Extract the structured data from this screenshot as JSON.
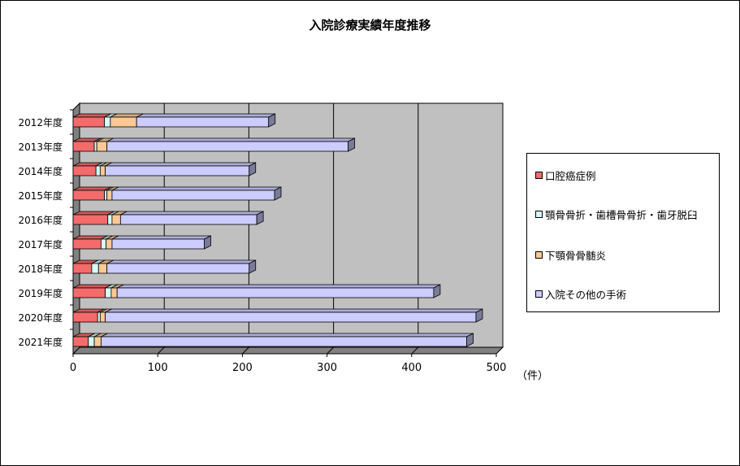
{
  "chart_data": {
    "type": "bar",
    "orientation": "horizontal",
    "stacked": true,
    "title": "入院診療実績年度推移",
    "categories": [
      "2012年度",
      "2013年度",
      "2014年度",
      "2015年度",
      "2016年度",
      "2017年度",
      "2018年度",
      "2019年度",
      "2020年度",
      "2021年度"
    ],
    "series": [
      {
        "name": "口腔癌症例",
        "color": "#f36b6b",
        "values": [
          37,
          25,
          27,
          37,
          41,
          33,
          22,
          38,
          29,
          18
        ]
      },
      {
        "name": "顎骨骨折・歯槽骨骨折・歯牙脱臼",
        "color": "#d6fbfb",
        "values": [
          7,
          3,
          5,
          3,
          5,
          6,
          8,
          7,
          3,
          7
        ]
      },
      {
        "name": "下顎骨骨髄炎",
        "color": "#fbc896",
        "values": [
          31,
          12,
          6,
          6,
          10,
          7,
          10,
          7,
          6,
          8
        ]
      },
      {
        "name": "入院その他の手術",
        "color": "#ccccff",
        "values": [
          156,
          285,
          170,
          192,
          161,
          109,
          168,
          374,
          438,
          432
        ]
      }
    ],
    "xlim": [
      0,
      500
    ],
    "xticks": [
      0,
      100,
      200,
      300,
      400,
      500
    ],
    "unit": "（件）",
    "grid": true,
    "legend": "right"
  }
}
